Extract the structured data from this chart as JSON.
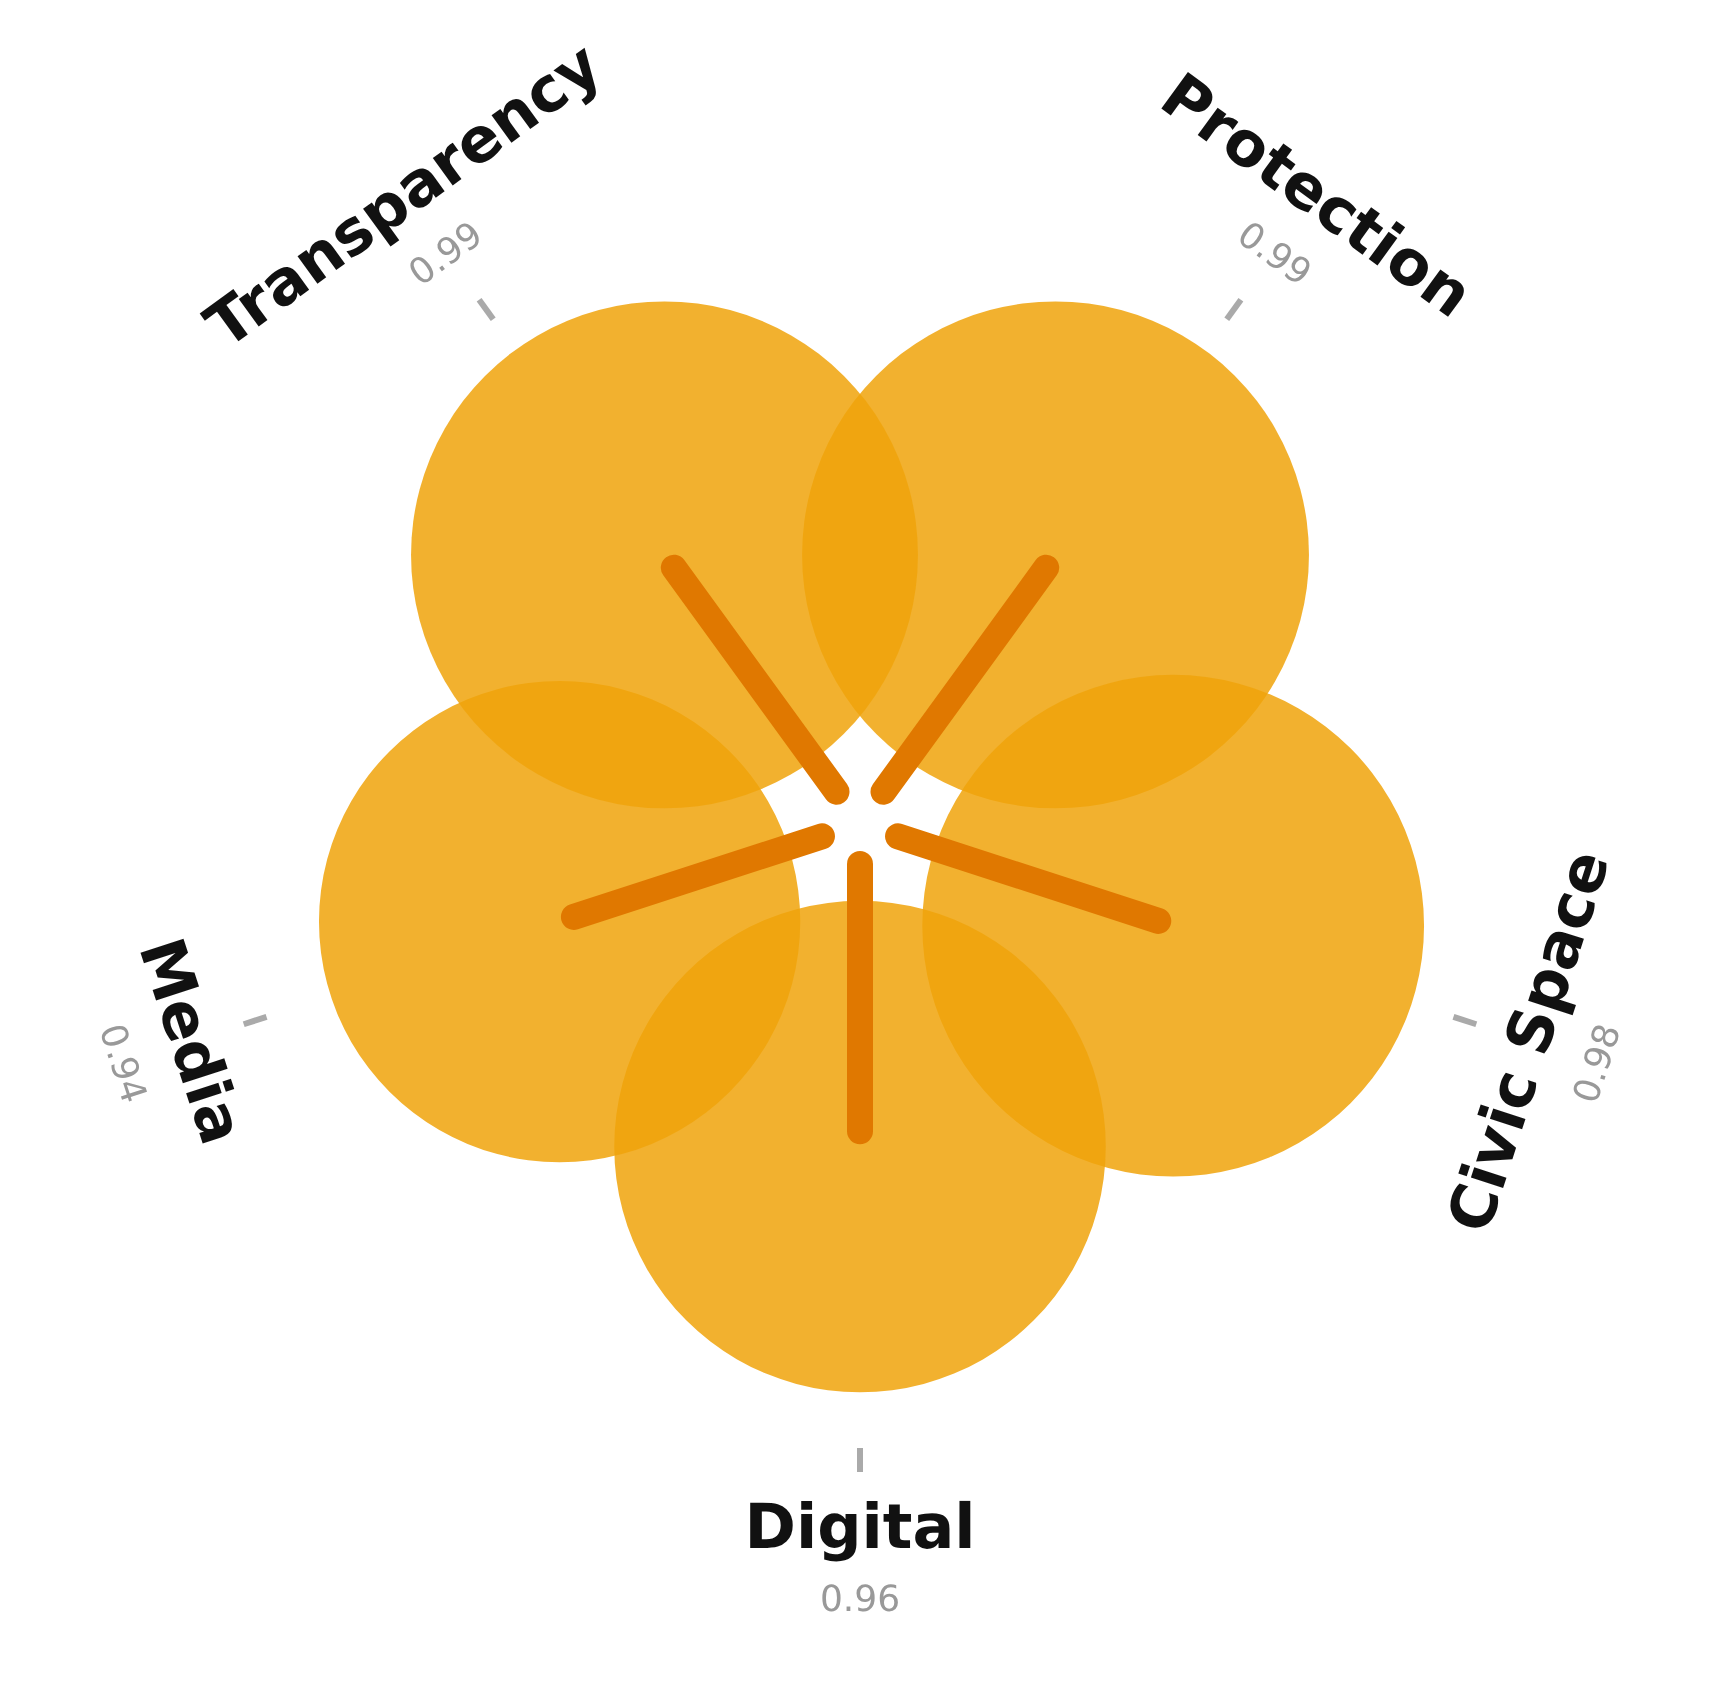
{
  "chart_data": {
    "type": "other",
    "categories": [
      "Protection",
      "Civic Space",
      "Digital",
      "Media",
      "Transparency"
    ],
    "values": [
      0.99,
      0.98,
      0.96,
      0.94,
      0.99
    ],
    "color": "#f0a30a",
    "data_labels": true
  }
}
